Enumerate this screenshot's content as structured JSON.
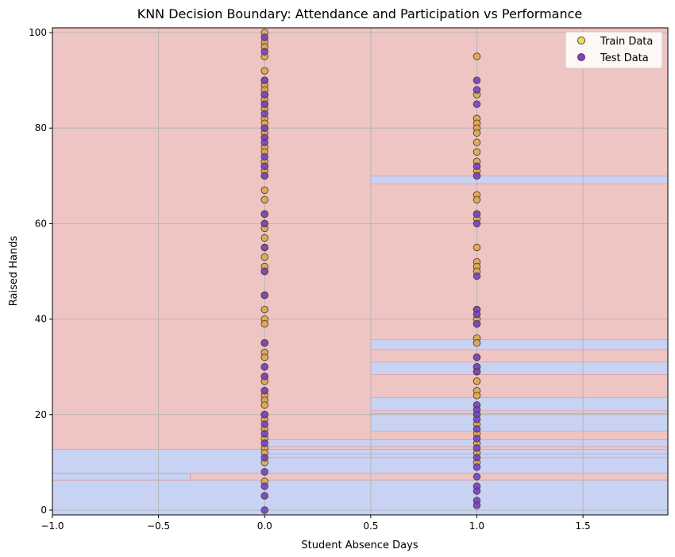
{
  "chart_data": {
    "type": "scatter",
    "title": "KNN Decision Boundary: Attendance and Participation vs Performance",
    "xlabel": "Student Absence Days",
    "ylabel": "Raised Hands",
    "xlim": [
      -1.0,
      1.9
    ],
    "ylim": [
      -1,
      101
    ],
    "x_ticks": [
      -1.0,
      -0.5,
      0.0,
      0.5,
      1.0,
      1.5
    ],
    "x_tick_labels": [
      "−1.0",
      "−0.5",
      "0.0",
      "0.5",
      "1.0",
      "1.5"
    ],
    "y_ticks": [
      0,
      20,
      40,
      60,
      80,
      100
    ],
    "y_tick_labels": [
      "0",
      "20",
      "40",
      "60",
      "80",
      "100"
    ],
    "grid": true,
    "legend_position": "top-right",
    "colors": {
      "region_high": "#efc5c4",
      "region_low": "#c8d2f2",
      "region_edge": "#e08d8a",
      "train_point": "#d9a84e",
      "test_point": "#6b3cc7",
      "point_edge": "#5a3b2a",
      "train_legend": "#f2dc4a",
      "test_legend": "#8a3ac9"
    },
    "decision_regions": {
      "background": "high",
      "low_bands": [
        {
          "x": [
            -1.0,
            1.9
          ],
          "y": [
            -1,
            6.3
          ]
        },
        {
          "x": [
            -1.0,
            1.9
          ],
          "y": [
            7.7,
            12.7
          ]
        },
        {
          "x": [
            -1.0,
            -0.35
          ],
          "y": [
            6.3,
            7.7
          ]
        },
        {
          "x": [
            0.0,
            1.9
          ],
          "y": [
            11.0,
            11.8
          ]
        },
        {
          "x": [
            0.0,
            1.9
          ],
          "y": [
            13.3,
            14.7
          ]
        },
        {
          "x": [
            0.5,
            1.9
          ],
          "y": [
            16.5,
            20.2
          ]
        },
        {
          "x": [
            0.5,
            1.9
          ],
          "y": [
            20.8,
            23.6
          ]
        },
        {
          "x": [
            0.5,
            1.9
          ],
          "y": [
            28.4,
            31.0
          ]
        },
        {
          "x": [
            0.5,
            1.9
          ],
          "y": [
            33.6,
            35.7
          ]
        },
        {
          "x": [
            0.5,
            1.9
          ],
          "y": [
            68.3,
            70.0
          ]
        }
      ]
    },
    "series": [
      {
        "name": "Train Data",
        "x": [
          0,
          0,
          0,
          0,
          0,
          0,
          0,
          0,
          0,
          0,
          0,
          0,
          0,
          0,
          0,
          0,
          0,
          0,
          0,
          0,
          0,
          0,
          0,
          0,
          0,
          0,
          0,
          0,
          0,
          0,
          0,
          0,
          0,
          0,
          0,
          0,
          0,
          0,
          0,
          0,
          0,
          0,
          0,
          0,
          0,
          0,
          0,
          0,
          0,
          0,
          0,
          0,
          0,
          0,
          0,
          1,
          1,
          1,
          1,
          1,
          1,
          1,
          1,
          1,
          1,
          1,
          1,
          1,
          1,
          1,
          1,
          1,
          1,
          1,
          1,
          1,
          1,
          1,
          1,
          1,
          1,
          1,
          1,
          1,
          1,
          1,
          1,
          1,
          1,
          1
        ],
        "y": [
          100,
          98,
          97,
          95,
          92,
          90,
          89,
          88,
          87,
          86,
          85,
          84,
          82,
          81,
          80,
          79,
          78,
          76,
          75,
          73,
          72,
          71,
          70,
          67,
          65,
          62,
          60,
          59,
          57,
          55,
          53,
          51,
          50,
          45,
          42,
          40,
          39,
          35,
          33,
          32,
          30,
          28,
          27,
          25,
          24,
          23,
          22,
          20,
          19,
          17,
          15,
          13,
          12,
          10,
          6,
          95,
          87,
          82,
          81,
          80,
          79,
          77,
          75,
          73,
          71,
          70,
          66,
          65,
          62,
          61,
          55,
          52,
          51,
          50,
          42,
          40,
          39,
          36,
          35,
          32,
          30,
          29,
          27,
          25,
          24,
          18,
          16,
          14,
          12,
          10
        ]
      },
      {
        "name": "Test Data",
        "x": [
          0,
          0,
          0,
          0,
          0,
          0,
          0,
          0,
          0,
          0,
          0,
          0,
          0,
          0,
          0,
          0,
          0,
          0,
          0,
          0,
          0,
          0,
          0,
          0,
          0,
          0,
          0,
          0,
          0,
          0,
          1,
          1,
          1,
          1,
          1,
          1,
          1,
          1,
          1,
          1,
          1,
          1,
          1,
          1,
          1,
          1,
          1,
          1,
          1,
          1,
          1,
          1,
          1,
          1,
          1,
          1,
          1,
          1
        ],
        "y": [
          99,
          96,
          90,
          87,
          85,
          83,
          80,
          78,
          77,
          74,
          72,
          70,
          62,
          60,
          55,
          50,
          45,
          35,
          30,
          28,
          25,
          20,
          18,
          16,
          14,
          11,
          8,
          5,
          3,
          0,
          90,
          88,
          85,
          72,
          70,
          62,
          60,
          49,
          42,
          41,
          39,
          32,
          30,
          29,
          22,
          21,
          20,
          19,
          17,
          15,
          13,
          11,
          9,
          7,
          5,
          4,
          2,
          1
        ]
      }
    ]
  }
}
